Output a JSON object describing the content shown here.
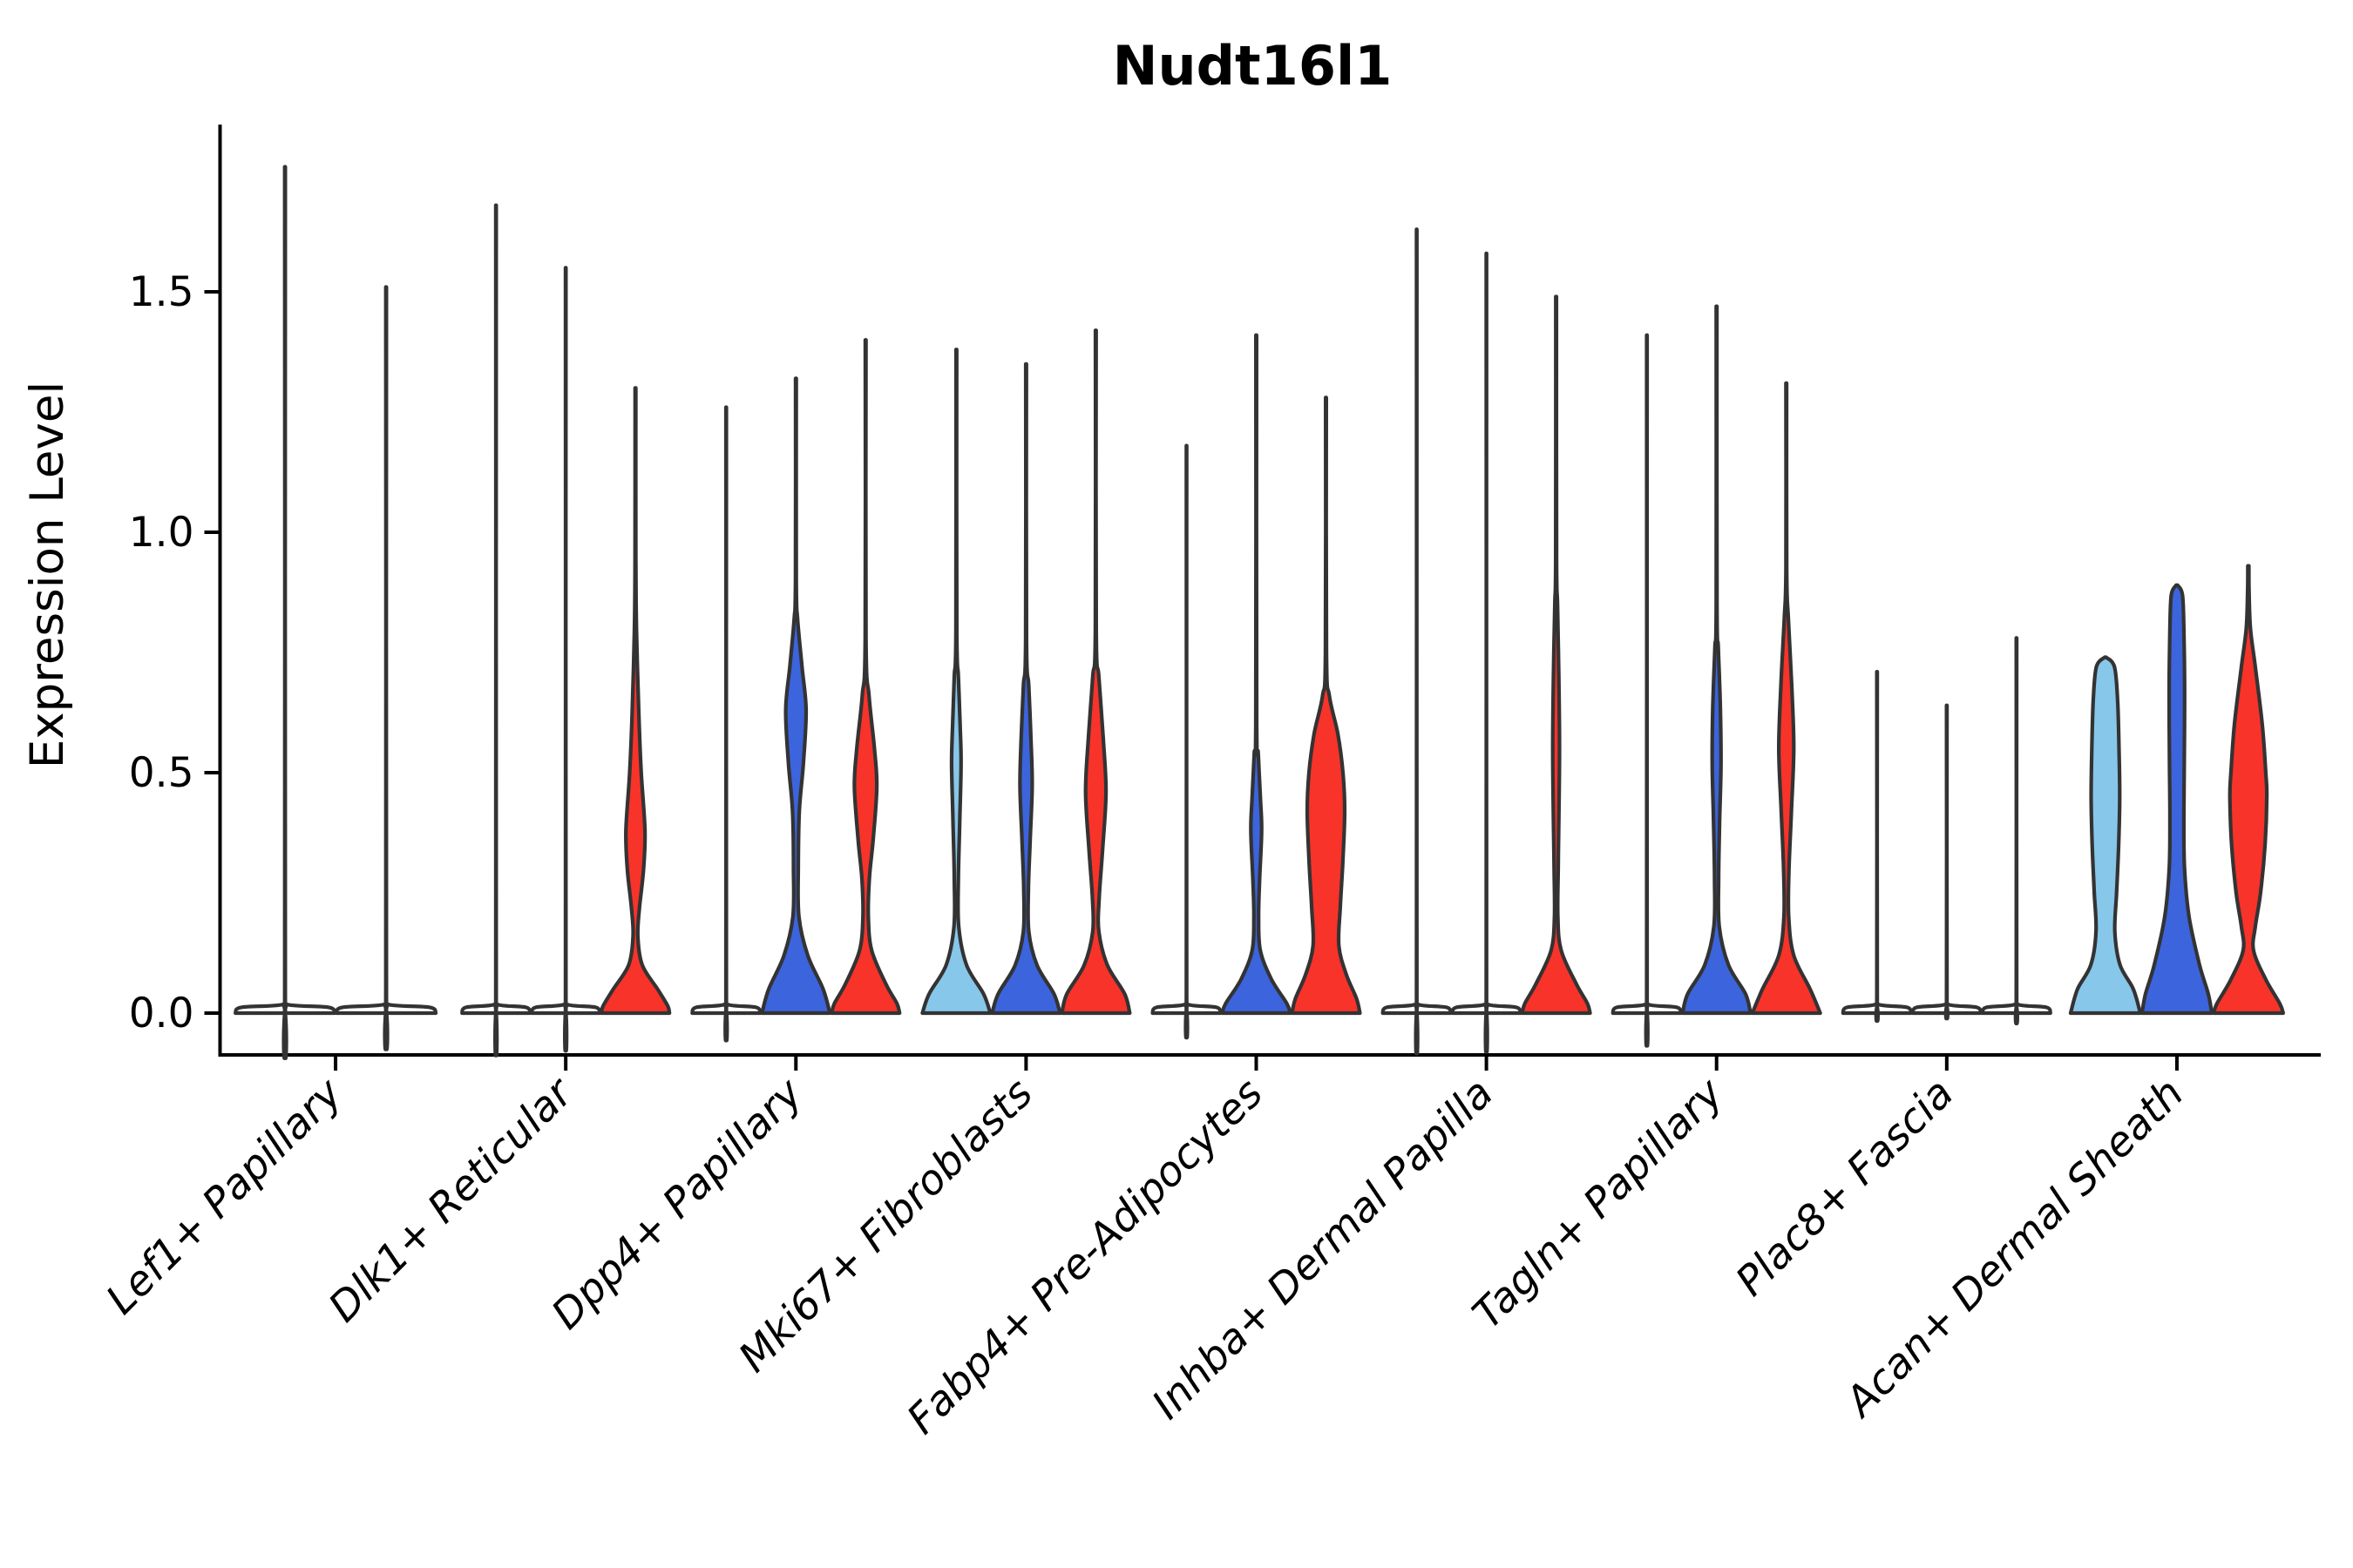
{
  "title": "Nudt16l1",
  "axes": {
    "ylabel": "Expression Level",
    "ytick_labels": [
      "0.0",
      "0.5",
      "1.0",
      "1.5"
    ]
  },
  "palette": {
    "light_blue": "#87C7EA",
    "dark_blue": "#3C64DC",
    "red": "#F8332A",
    "edge": "#333333",
    "axis": "#000000"
  },
  "chart_data": {
    "type": "violin",
    "title": "Nudt16l1",
    "xlabel": "",
    "ylabel": "Expression Level",
    "ylim": [
      -0.09,
      1.85
    ],
    "yticks": [
      0.0,
      0.5,
      1.0,
      1.5
    ],
    "grid": false,
    "legend": "none",
    "categories": [
      "Lef1+ Papillary",
      "Dlk1+ Reticular",
      "Dpp4+ Papillary",
      "Mki67+ Fibroblasts",
      "Fabp4+ Pre-Adipocytes",
      "Inhba+ Dermal Papilla",
      "Tagln+ Papillary",
      "Plac8+ Fascia",
      "Acan+ Dermal Sheath"
    ],
    "series_colors": [
      "light_blue",
      "dark_blue",
      "red"
    ],
    "groups": [
      {
        "category": "Lef1+ Papillary",
        "violins": [
          {
            "shape": "spike",
            "fill": null,
            "max": 1.76,
            "hw": 57
          },
          {
            "shape": "spike",
            "fill": null,
            "max": 1.51,
            "hw": 57
          }
        ]
      },
      {
        "category": "Dlk1+ Reticular",
        "violins": [
          {
            "shape": "spike",
            "fill": null,
            "max": 1.68,
            "hw": 39
          },
          {
            "shape": "spike",
            "fill": null,
            "max": 1.55,
            "hw": 39
          },
          {
            "shape": "violin",
            "fill": "red",
            "max": 1.3,
            "hw": 39,
            "profile": [
              [
                1.3,
                0.01
              ],
              [
                0.95,
                0.012
              ],
              [
                0.8,
                0.03
              ],
              [
                0.62,
                0.1
              ],
              [
                0.5,
                0.17
              ],
              [
                0.38,
                0.28
              ],
              [
                0.3,
                0.24
              ],
              [
                0.22,
                0.12
              ],
              [
                0.16,
                0.07
              ],
              [
                0.1,
                0.2
              ],
              [
                0.05,
                0.65
              ],
              [
                0.015,
                0.95
              ],
              [
                0,
                1.0
              ]
            ]
          }
        ]
      },
      {
        "category": "Dpp4+ Papillary",
        "violins": [
          {
            "shape": "spike",
            "fill": null,
            "max": 1.26,
            "hw": 39
          },
          {
            "shape": "violin",
            "fill": "dark_blue",
            "max": 1.32,
            "hw": 39,
            "profile": [
              [
                1.32,
                0.01
              ],
              [
                0.9,
                0.012
              ],
              [
                0.82,
                0.05
              ],
              [
                0.72,
                0.18
              ],
              [
                0.63,
                0.3
              ],
              [
                0.52,
                0.22
              ],
              [
                0.42,
                0.1
              ],
              [
                0.3,
                0.07
              ],
              [
                0.2,
                0.09
              ],
              [
                0.12,
                0.35
              ],
              [
                0.05,
                0.8
              ],
              [
                0,
                1.0
              ]
            ]
          },
          {
            "shape": "violin",
            "fill": "red",
            "max": 1.4,
            "hw": 39,
            "profile": [
              [
                1.4,
                0.01
              ],
              [
                0.78,
                0.012
              ],
              [
                0.66,
                0.1
              ],
              [
                0.55,
                0.26
              ],
              [
                0.47,
                0.33
              ],
              [
                0.36,
                0.22
              ],
              [
                0.28,
                0.11
              ],
              [
                0.2,
                0.08
              ],
              [
                0.13,
                0.18
              ],
              [
                0.06,
                0.6
              ],
              [
                0.02,
                0.92
              ],
              [
                0,
                1.0
              ]
            ]
          }
        ]
      },
      {
        "category": "Mki67+ Fibroblasts",
        "violins": [
          {
            "shape": "violin",
            "fill": "light_blue",
            "max": 1.38,
            "hw": 39,
            "profile": [
              [
                1.38,
                0.01
              ],
              [
                0.8,
                0.012
              ],
              [
                0.7,
                0.06
              ],
              [
                0.6,
                0.11
              ],
              [
                0.52,
                0.14
              ],
              [
                0.4,
                0.1
              ],
              [
                0.28,
                0.06
              ],
              [
                0.18,
                0.07
              ],
              [
                0.1,
                0.3
              ],
              [
                0.04,
                0.8
              ],
              [
                0,
                1.0
              ]
            ]
          },
          {
            "shape": "violin",
            "fill": "dark_blue",
            "max": 1.35,
            "hw": 39,
            "profile": [
              [
                1.35,
                0.01
              ],
              [
                0.78,
                0.012
              ],
              [
                0.68,
                0.08
              ],
              [
                0.56,
                0.15
              ],
              [
                0.47,
                0.18
              ],
              [
                0.36,
                0.12
              ],
              [
                0.26,
                0.07
              ],
              [
                0.17,
                0.08
              ],
              [
                0.1,
                0.32
              ],
              [
                0.04,
                0.82
              ],
              [
                0,
                1.0
              ]
            ]
          },
          {
            "shape": "violin",
            "fill": "red",
            "max": 1.42,
            "hw": 39,
            "profile": [
              [
                1.42,
                0.01
              ],
              [
                0.8,
                0.012
              ],
              [
                0.7,
                0.09
              ],
              [
                0.57,
                0.22
              ],
              [
                0.46,
                0.3
              ],
              [
                0.34,
                0.2
              ],
              [
                0.24,
                0.1
              ],
              [
                0.17,
                0.09
              ],
              [
                0.1,
                0.34
              ],
              [
                0.04,
                0.85
              ],
              [
                0,
                1.0
              ]
            ]
          }
        ]
      },
      {
        "category": "Fabp4+ Pre-Adipocytes",
        "violins": [
          {
            "shape": "spike",
            "fill": null,
            "max": 1.18,
            "hw": 39
          },
          {
            "shape": "violin",
            "fill": "dark_blue",
            "max": 1.41,
            "hw": 39,
            "profile": [
              [
                1.41,
                0.01
              ],
              [
                0.62,
                0.012
              ],
              [
                0.54,
                0.06
              ],
              [
                0.45,
                0.12
              ],
              [
                0.38,
                0.16
              ],
              [
                0.28,
                0.1
              ],
              [
                0.2,
                0.07
              ],
              [
                0.13,
                0.12
              ],
              [
                0.07,
                0.45
              ],
              [
                0.02,
                0.9
              ],
              [
                0,
                1.0
              ]
            ]
          },
          {
            "shape": "violin",
            "fill": "red",
            "max": 1.28,
            "hw": 39,
            "profile": [
              [
                1.28,
                0.01
              ],
              [
                0.75,
                0.015
              ],
              [
                0.66,
                0.1
              ],
              [
                0.58,
                0.35
              ],
              [
                0.5,
                0.5
              ],
              [
                0.42,
                0.55
              ],
              [
                0.32,
                0.5
              ],
              [
                0.22,
                0.42
              ],
              [
                0.14,
                0.38
              ],
              [
                0.08,
                0.6
              ],
              [
                0.03,
                0.9
              ],
              [
                0,
                1.0
              ]
            ]
          }
        ]
      },
      {
        "category": "Inhba+ Dermal Papilla",
        "violins": [
          {
            "shape": "spike",
            "fill": null,
            "max": 1.63,
            "hw": 39
          },
          {
            "shape": "spike",
            "fill": null,
            "max": 1.58,
            "hw": 39
          },
          {
            "shape": "violin",
            "fill": "red",
            "max": 1.49,
            "hw": 39,
            "profile": [
              [
                1.49,
                0.01
              ],
              [
                0.95,
                0.012
              ],
              [
                0.85,
                0.04
              ],
              [
                0.7,
                0.08
              ],
              [
                0.55,
                0.1
              ],
              [
                0.4,
                0.08
              ],
              [
                0.3,
                0.06
              ],
              [
                0.2,
                0.05
              ],
              [
                0.13,
                0.15
              ],
              [
                0.06,
                0.6
              ],
              [
                0.02,
                0.92
              ],
              [
                0,
                1.0
              ]
            ]
          }
        ]
      },
      {
        "category": "Tagln+ Papillary",
        "violins": [
          {
            "shape": "spike",
            "fill": null,
            "max": 1.41,
            "hw": 39
          },
          {
            "shape": "violin",
            "fill": "dark_blue",
            "max": 1.47,
            "hw": 39,
            "profile": [
              [
                1.47,
                0.01
              ],
              [
                0.85,
                0.012
              ],
              [
                0.76,
                0.05
              ],
              [
                0.64,
                0.11
              ],
              [
                0.52,
                0.13
              ],
              [
                0.4,
                0.09
              ],
              [
                0.28,
                0.06
              ],
              [
                0.18,
                0.08
              ],
              [
                0.1,
                0.35
              ],
              [
                0.04,
                0.85
              ],
              [
                0,
                1.0
              ]
            ]
          },
          {
            "shape": "violin",
            "fill": "red",
            "max": 1.31,
            "hw": 39,
            "profile": [
              [
                1.31,
                0.01
              ],
              [
                0.92,
                0.012
              ],
              [
                0.82,
                0.06
              ],
              [
                0.68,
                0.16
              ],
              [
                0.55,
                0.22
              ],
              [
                0.42,
                0.15
              ],
              [
                0.3,
                0.08
              ],
              [
                0.2,
                0.07
              ],
              [
                0.12,
                0.22
              ],
              [
                0.05,
                0.7
              ],
              [
                0,
                1.0
              ]
            ]
          }
        ]
      },
      {
        "category": "Plac8+ Fascia",
        "violins": [
          {
            "shape": "spike",
            "fill": null,
            "max": 0.71,
            "hw": 39
          },
          {
            "shape": "spike",
            "fill": null,
            "max": 0.64,
            "hw": 39
          },
          {
            "shape": "spike",
            "fill": null,
            "max": 0.78,
            "hw": 39
          }
        ]
      },
      {
        "category": "Acan+ Dermal Sheath",
        "violins": [
          {
            "shape": "violin",
            "fill": "light_blue",
            "max": 0.74,
            "hw": 40,
            "profile": [
              [
                0.74,
                0.02
              ],
              [
                0.72,
                0.26
              ],
              [
                0.65,
                0.35
              ],
              [
                0.55,
                0.39
              ],
              [
                0.45,
                0.41
              ],
              [
                0.35,
                0.38
              ],
              [
                0.25,
                0.32
              ],
              [
                0.17,
                0.27
              ],
              [
                0.1,
                0.42
              ],
              [
                0.05,
                0.8
              ],
              [
                0,
                1.0
              ]
            ]
          },
          {
            "shape": "violin",
            "fill": "dark_blue",
            "max": 0.89,
            "hw": 40,
            "profile": [
              [
                0.89,
                0.02
              ],
              [
                0.87,
                0.16
              ],
              [
                0.8,
                0.2
              ],
              [
                0.7,
                0.22
              ],
              [
                0.6,
                0.22
              ],
              [
                0.5,
                0.21
              ],
              [
                0.4,
                0.2
              ],
              [
                0.3,
                0.22
              ],
              [
                0.2,
                0.35
              ],
              [
                0.1,
                0.65
              ],
              [
                0.04,
                0.9
              ],
              [
                0,
                1.0
              ]
            ]
          },
          {
            "shape": "violin",
            "fill": "red",
            "max": 0.93,
            "hw": 40,
            "profile": [
              [
                0.93,
                0.015
              ],
              [
                0.88,
                0.02
              ],
              [
                0.8,
                0.06
              ],
              [
                0.72,
                0.2
              ],
              [
                0.6,
                0.4
              ],
              [
                0.5,
                0.5
              ],
              [
                0.45,
                0.53
              ],
              [
                0.35,
                0.48
              ],
              [
                0.25,
                0.35
              ],
              [
                0.18,
                0.2
              ],
              [
                0.13,
                0.15
              ],
              [
                0.07,
                0.5
              ],
              [
                0.02,
                0.9
              ],
              [
                0,
                1.0
              ]
            ]
          }
        ]
      }
    ]
  }
}
